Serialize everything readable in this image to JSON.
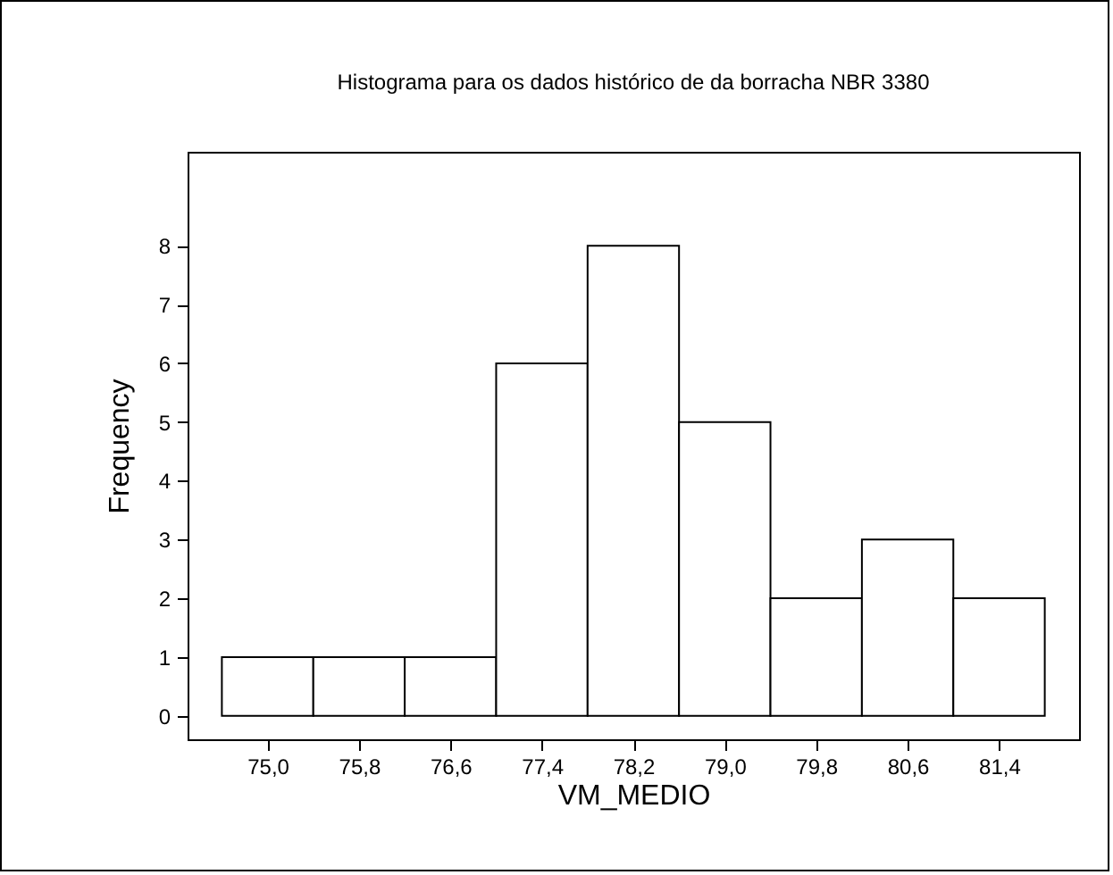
{
  "chart_data": {
    "type": "histogram",
    "title": "Histograma para os dados histórico de da borracha NBR 3380",
    "xlabel": "VM_MEDIO",
    "ylabel": "Frequency",
    "bins": [
      74.6,
      75.4,
      76.2,
      77.0,
      77.8,
      78.6,
      79.4,
      80.2,
      81.0,
      81.8
    ],
    "values": [
      1,
      1,
      1,
      6,
      8,
      5,
      2,
      3,
      2
    ],
    "color": "#ffffff",
    "xlim": [
      74.3,
      82.1
    ],
    "xticks": [
      {
        "value": 75.0,
        "label": "75,0"
      },
      {
        "value": 75.8,
        "label": "75,8"
      },
      {
        "value": 76.6,
        "label": "76,6"
      },
      {
        "value": 77.4,
        "label": "77,4"
      },
      {
        "value": 78.2,
        "label": "78,2"
      },
      {
        "value": 79.0,
        "label": "79,0"
      },
      {
        "value": 79.8,
        "label": "79,8"
      },
      {
        "value": 80.6,
        "label": "80,6"
      },
      {
        "value": 81.4,
        "label": "81,4"
      }
    ],
    "ylim": [
      -0.4,
      9.6
    ],
    "yticks": [
      0,
      1,
      2,
      3,
      4,
      5,
      6,
      7,
      8
    ],
    "grid": false
  }
}
